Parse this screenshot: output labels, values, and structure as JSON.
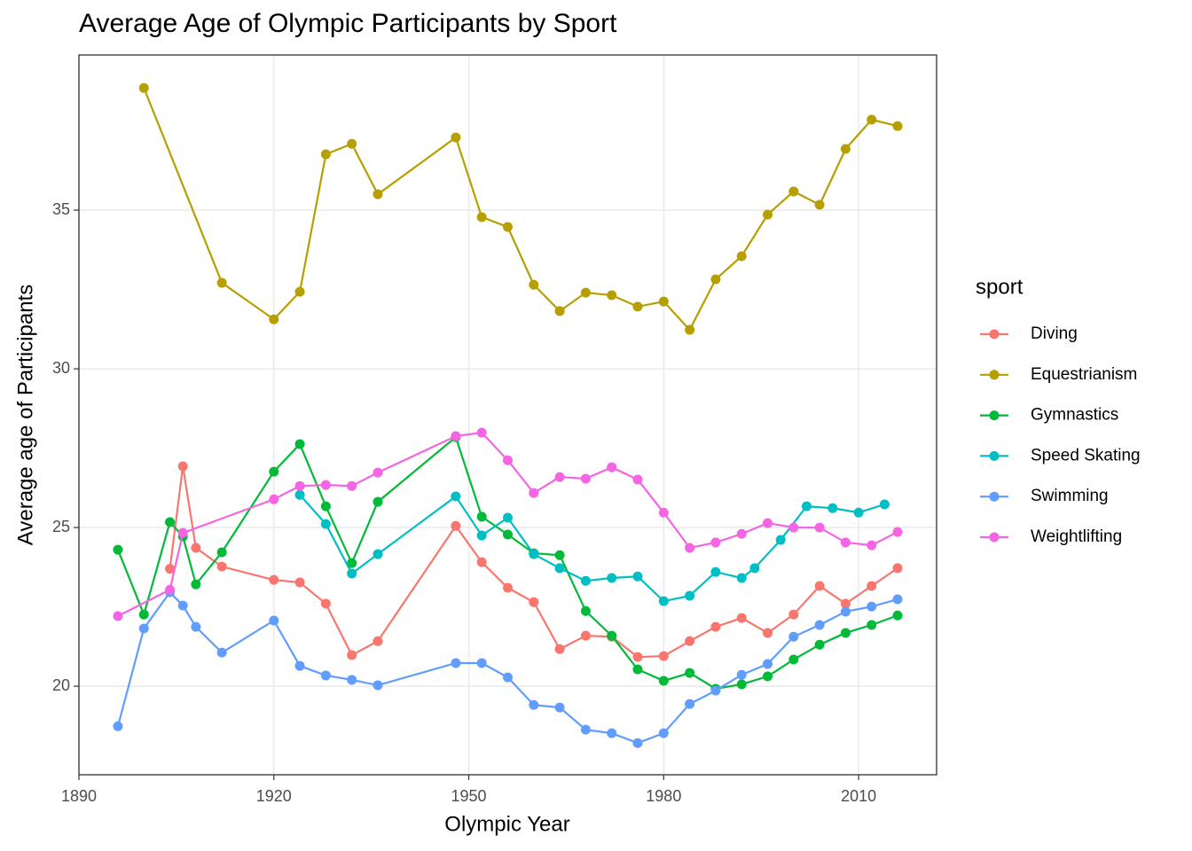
{
  "chart_data": {
    "type": "line",
    "title": "Average Age of Olympic Participants by Sport",
    "x_label": "Olympic Year",
    "y_label": "Average age of Participants",
    "legend_title": "sport",
    "legend_position": "right",
    "grid": true,
    "xlim": [
      1890,
      2022
    ],
    "ylim": [
      17.21,
      39.89
    ],
    "xticks": [
      1890,
      1920,
      1950,
      1980,
      2010
    ],
    "yticks": [
      20,
      25,
      30,
      35
    ],
    "series": [
      {
        "name": "Diving",
        "color": "#F8766D",
        "x": [
          1904,
          1906,
          1908,
          1912,
          1920,
          1924,
          1928,
          1932,
          1936,
          1948,
          1952,
          1956,
          1960,
          1964,
          1968,
          1972,
          1976,
          1980,
          1984,
          1988,
          1992,
          1996,
          2000,
          2004,
          2008,
          2012,
          2016
        ],
        "values": [
          23.7,
          26.93,
          24.36,
          23.77,
          23.35,
          23.27,
          22.6,
          20.98,
          21.42,
          25.05,
          23.91,
          23.1,
          22.65,
          21.17,
          21.59,
          21.56,
          20.92,
          20.95,
          21.42,
          21.87,
          22.15,
          21.68,
          22.26,
          23.16,
          22.6,
          23.16,
          23.72
        ]
      },
      {
        "name": "Equestrianism",
        "color": "#B79F00",
        "x": [
          1900,
          1912,
          1920,
          1924,
          1928,
          1932,
          1936,
          1948,
          1952,
          1956,
          1960,
          1964,
          1968,
          1972,
          1976,
          1980,
          1984,
          1988,
          1992,
          1996,
          2000,
          2004,
          2008,
          2012,
          2016
        ],
        "values": [
          38.85,
          32.71,
          31.56,
          32.43,
          36.76,
          37.09,
          35.5,
          37.29,
          34.78,
          34.47,
          32.65,
          31.82,
          32.4,
          32.32,
          31.96,
          32.12,
          31.23,
          32.82,
          33.55,
          34.86,
          35.59,
          35.17,
          36.93,
          37.85,
          37.65
        ]
      },
      {
        "name": "Gymnastics",
        "color": "#00BA38",
        "x": [
          1896,
          1900,
          1904,
          1906,
          1908,
          1912,
          1920,
          1924,
          1928,
          1932,
          1936,
          1948,
          1952,
          1956,
          1960,
          1964,
          1968,
          1972,
          1976,
          1980,
          1984,
          1988,
          1992,
          1996,
          2000,
          2004,
          2008,
          2012,
          2016
        ],
        "values": [
          24.3,
          22.26,
          25.17,
          24.72,
          23.21,
          24.22,
          26.76,
          27.63,
          25.67,
          23.88,
          25.81,
          27.85,
          25.34,
          24.78,
          24.19,
          24.13,
          22.37,
          21.59,
          20.53,
          20.17,
          20.42,
          19.92,
          20.06,
          20.31,
          20.84,
          21.31,
          21.68,
          21.93,
          22.23
        ]
      },
      {
        "name": "Speed Skating",
        "color": "#00BFC4",
        "x": [
          1924,
          1928,
          1932,
          1936,
          1948,
          1952,
          1956,
          1960,
          1964,
          1968,
          1972,
          1976,
          1980,
          1984,
          1988,
          1992,
          1994,
          1998,
          2002,
          2006,
          2010,
          2014
        ],
        "values": [
          26.03,
          25.11,
          23.55,
          24.16,
          25.98,
          24.75,
          25.31,
          24.16,
          23.72,
          23.32,
          23.41,
          23.46,
          22.68,
          22.85,
          23.6,
          23.41,
          23.72,
          24.61,
          25.67,
          25.61,
          25.47,
          25.73
        ]
      },
      {
        "name": "Swimming",
        "color": "#619CFF",
        "x": [
          1896,
          1900,
          1904,
          1906,
          1908,
          1912,
          1920,
          1924,
          1928,
          1932,
          1936,
          1948,
          1952,
          1956,
          1960,
          1964,
          1968,
          1972,
          1976,
          1980,
          1984,
          1988,
          1992,
          1996,
          2000,
          2004,
          2008,
          2012,
          2016
        ],
        "values": [
          18.74,
          21.82,
          22.96,
          22.54,
          21.87,
          21.06,
          22.07,
          20.64,
          20.34,
          20.2,
          20.03,
          20.73,
          20.73,
          20.28,
          19.41,
          19.33,
          18.63,
          18.52,
          18.21,
          18.52,
          19.44,
          19.86,
          20.36,
          20.7,
          21.56,
          21.93,
          22.35,
          22.51,
          22.74
        ]
      },
      {
        "name": "Weightlifting",
        "color": "#F564E3",
        "x": [
          1896,
          1904,
          1906,
          1920,
          1924,
          1928,
          1932,
          1936,
          1948,
          1952,
          1956,
          1960,
          1964,
          1968,
          1972,
          1976,
          1980,
          1984,
          1988,
          1992,
          1996,
          2000,
          2004,
          2008,
          2012,
          2016
        ],
        "values": [
          22.21,
          23.04,
          24.83,
          25.89,
          26.31,
          26.34,
          26.31,
          26.73,
          27.88,
          27.99,
          27.12,
          26.09,
          26.59,
          26.54,
          26.9,
          26.51,
          25.47,
          24.36,
          24.53,
          24.8,
          25.14,
          25.0,
          25.0,
          24.53,
          24.44,
          24.86
        ]
      }
    ]
  }
}
